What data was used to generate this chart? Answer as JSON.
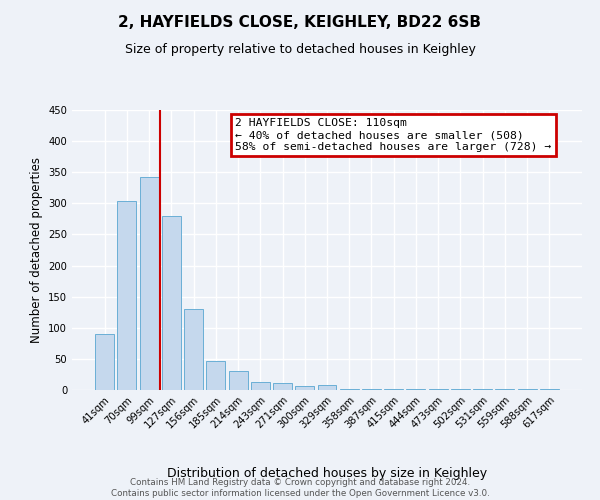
{
  "title": "2, HAYFIELDS CLOSE, KEIGHLEY, BD22 6SB",
  "subtitle": "Size of property relative to detached houses in Keighley",
  "bar_labels": [
    "41sqm",
    "70sqm",
    "99sqm",
    "127sqm",
    "156sqm",
    "185sqm",
    "214sqm",
    "243sqm",
    "271sqm",
    "300sqm",
    "329sqm",
    "358sqm",
    "387sqm",
    "415sqm",
    "444sqm",
    "473sqm",
    "502sqm",
    "531sqm",
    "559sqm",
    "588sqm",
    "617sqm"
  ],
  "bar_values": [
    90,
    303,
    342,
    280,
    130,
    47,
    30,
    13,
    12,
    6,
    8,
    2,
    2,
    2,
    2,
    2,
    2,
    2,
    2,
    2,
    2
  ],
  "bar_color": "#c5d8ed",
  "bar_edge_color": "#6aafd6",
  "vline_color": "#cc0000",
  "vline_pos": 2.5,
  "ylabel": "Number of detached properties",
  "xlabel": "Distribution of detached houses by size in Keighley",
  "ylim": [
    0,
    450
  ],
  "yticks": [
    0,
    50,
    100,
    150,
    200,
    250,
    300,
    350,
    400,
    450
  ],
  "annotation_title": "2 HAYFIELDS CLOSE: 110sqm",
  "annotation_line1": "← 40% of detached houses are smaller (508)",
  "annotation_line2": "58% of semi-detached houses are larger (728) →",
  "annotation_box_color": "#cc0000",
  "footer_line1": "Contains HM Land Registry data © Crown copyright and database right 2024.",
  "footer_line2": "Contains public sector information licensed under the Open Government Licence v3.0.",
  "background_color": "#eef2f8",
  "grid_color": "#ffffff"
}
